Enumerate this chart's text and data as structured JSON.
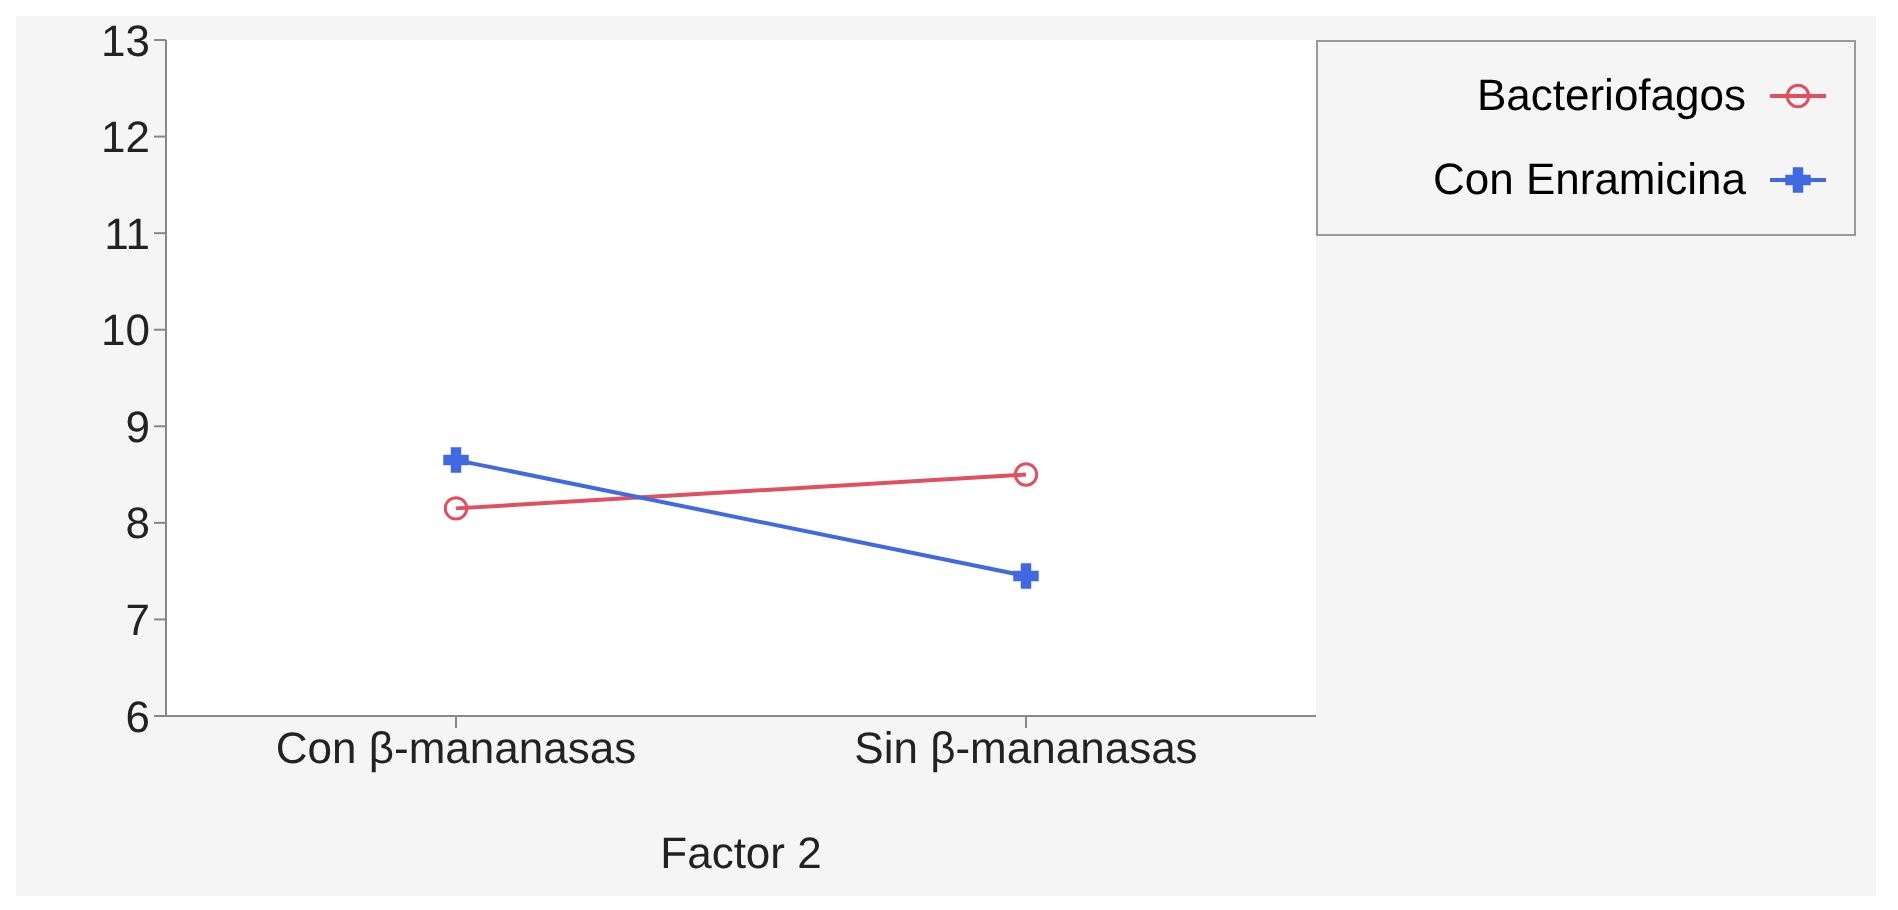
{
  "chart_data": {
    "type": "line",
    "xlabel": "Factor 2",
    "categories": [
      "Con β-mananasas",
      "Sin β-mananasas"
    ],
    "series": [
      {
        "name": "Bacteriofagos",
        "color": "#e05060",
        "values": [
          8.15,
          8.5
        ],
        "marker": "circle"
      },
      {
        "name": "Con Enramicina",
        "color": "#4169e1",
        "values": [
          8.65,
          7.45
        ],
        "marker": "cross"
      }
    ],
    "ylim": [
      6,
      13
    ],
    "yticks": [
      6,
      7,
      8,
      9,
      10,
      11,
      12,
      13
    ],
    "legend": "top right",
    "line_style": "solid"
  }
}
